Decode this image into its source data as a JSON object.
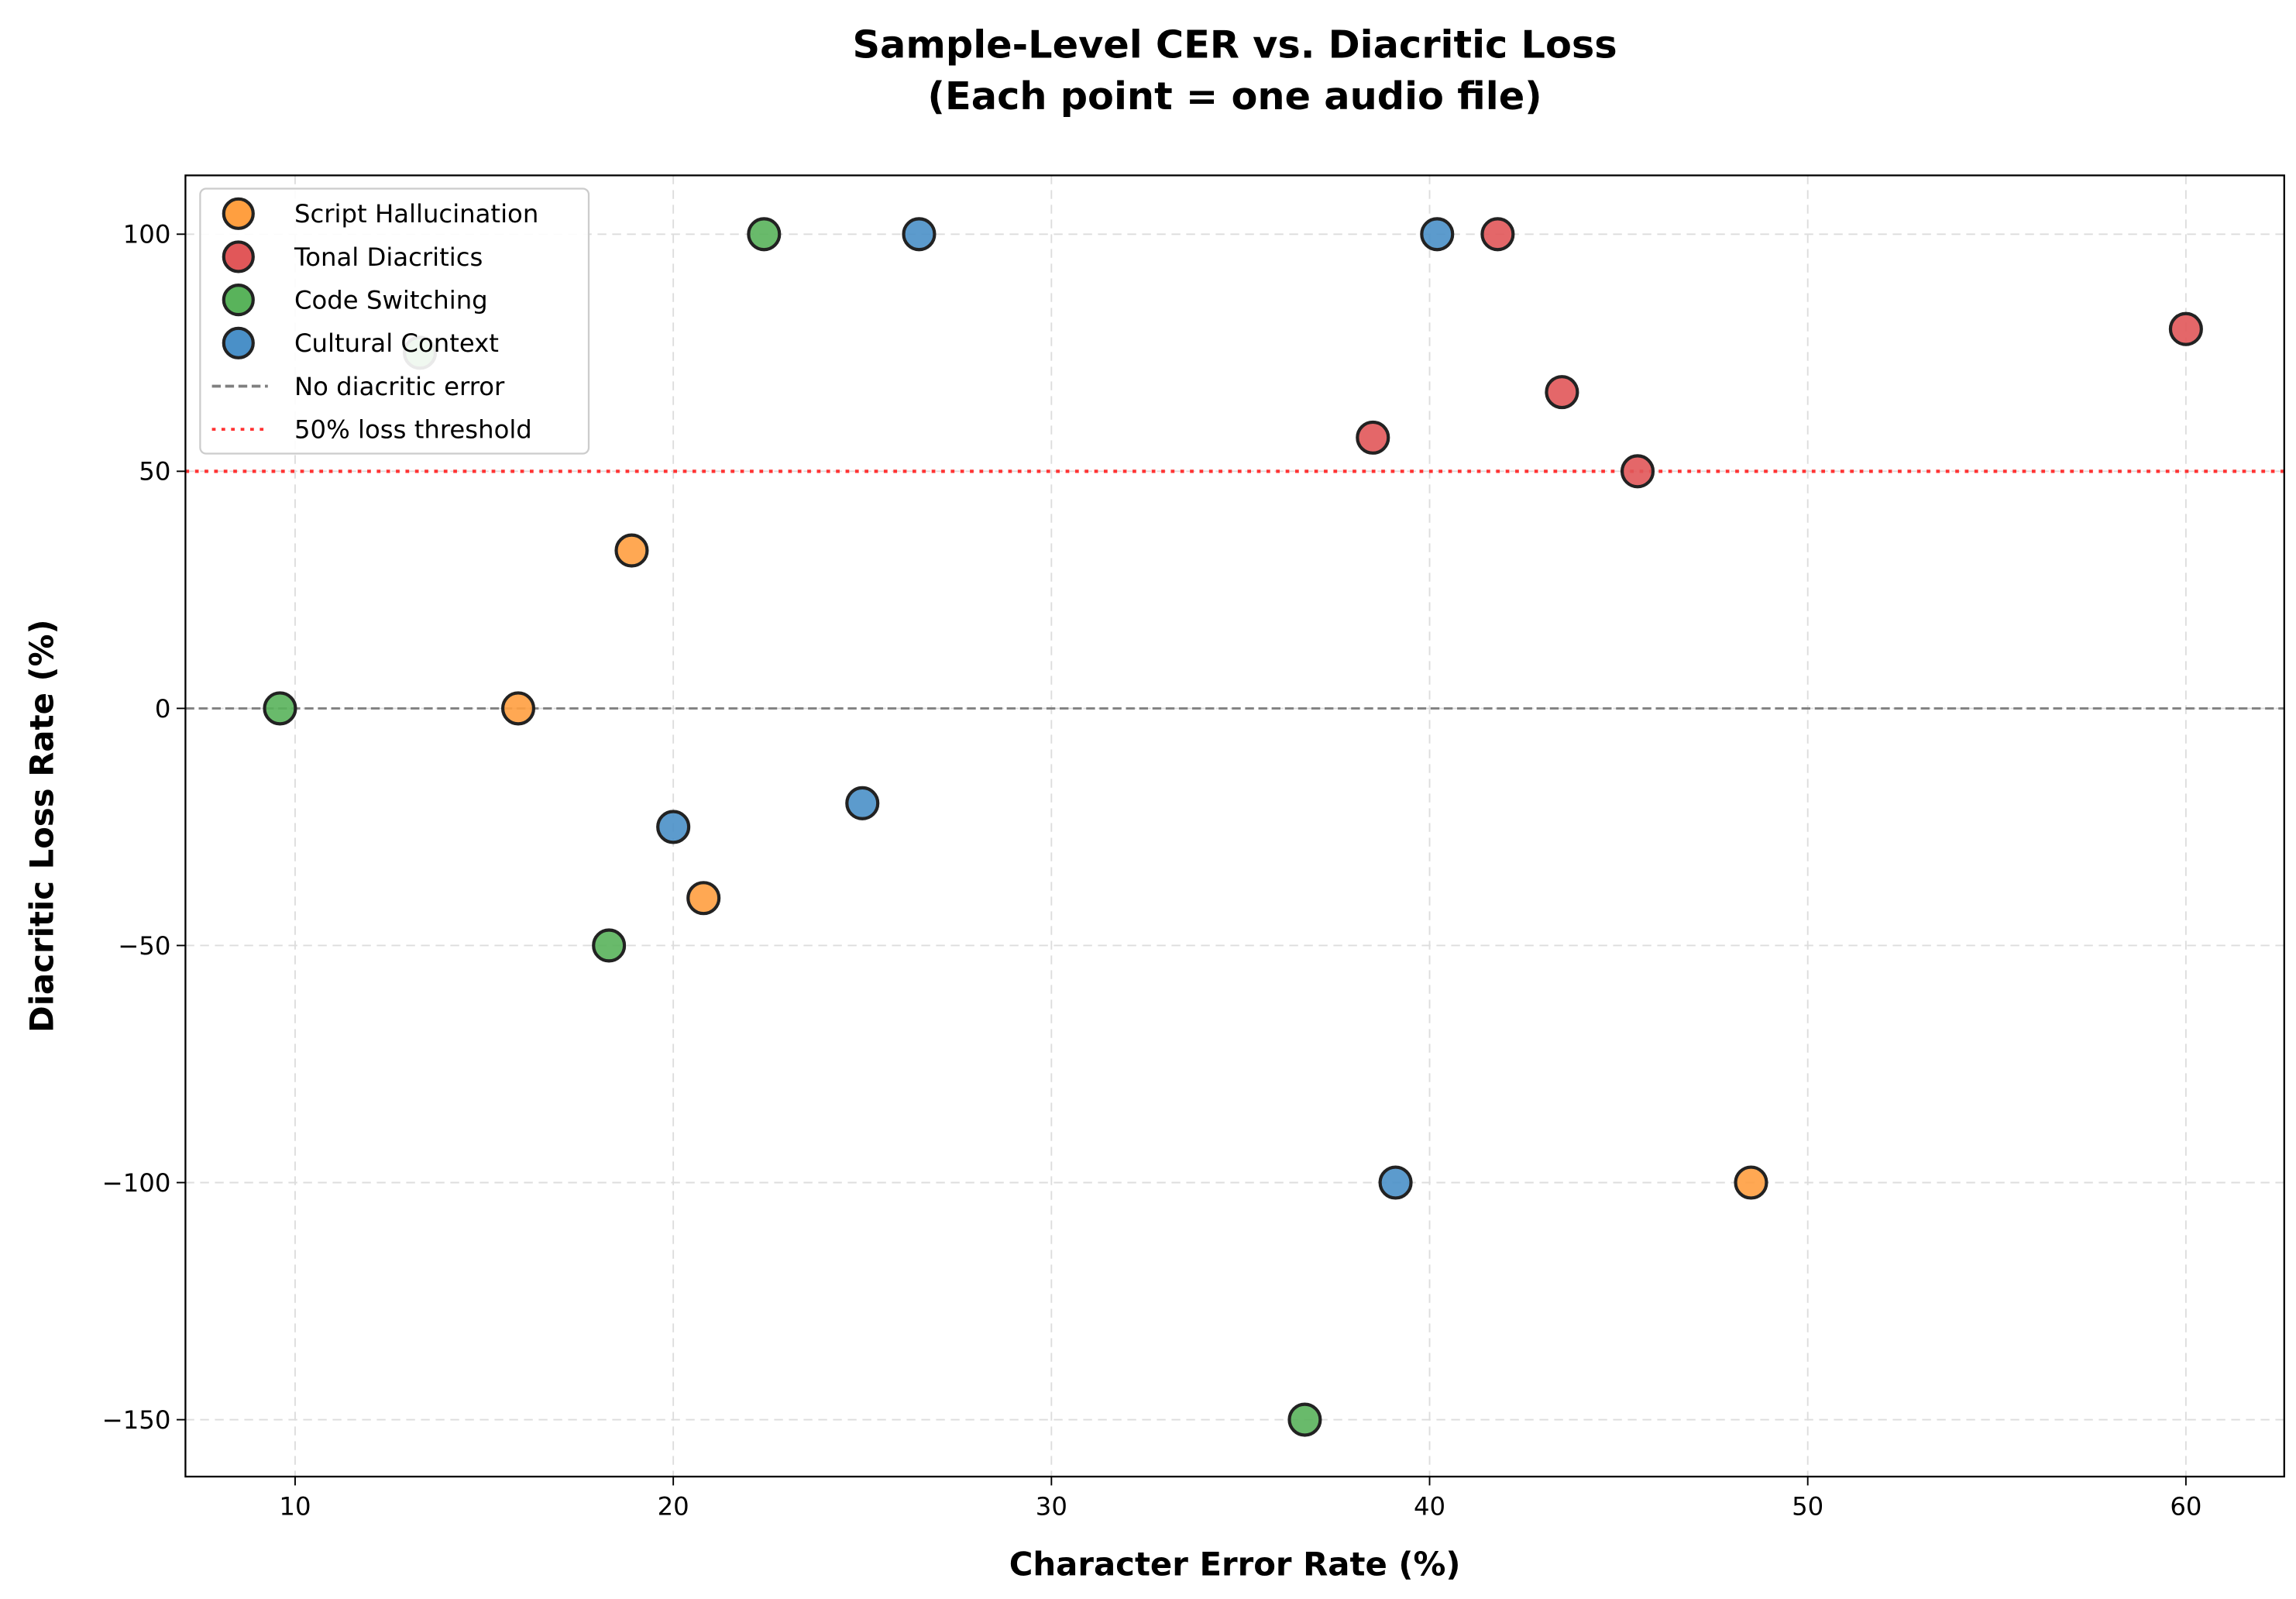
{
  "chart_data": {
    "type": "scatter",
    "title": [
      "Sample-Level CER vs. Diacritic Loss",
      "(Each point = one audio file)"
    ],
    "xlabel": "Character Error Rate (%)",
    "ylabel": "Diacritic Loss Rate (%)",
    "xlim": [
      7.1,
      62.6
    ],
    "ylim": [
      -162,
      112.4
    ],
    "xticks": [
      10,
      20,
      30,
      40,
      50,
      60
    ],
    "yticks": [
      -150,
      -100,
      -50,
      0,
      50,
      100
    ],
    "ytick_labels": [
      "−150",
      "−100",
      "−50",
      "0",
      "50",
      "100"
    ],
    "grid": true,
    "legend_placement": "upper-left",
    "series": [
      {
        "name": "Script Hallucination",
        "color": "#ff9f40",
        "points": [
          [
            15.9,
            0
          ],
          [
            18.9,
            33.3
          ],
          [
            20.8,
            -40
          ],
          [
            48.5,
            -100
          ]
        ]
      },
      {
        "name": "Tonal Diacritics",
        "color": "#e15759",
        "points": [
          [
            38.5,
            57.1
          ],
          [
            41.8,
            100
          ],
          [
            43.5,
            66.7
          ],
          [
            45.5,
            50
          ],
          [
            60.0,
            80
          ]
        ]
      },
      {
        "name": "Code Switching",
        "color": "#59b35b",
        "points": [
          [
            9.6,
            0
          ],
          [
            13.3,
            75
          ],
          [
            18.3,
            -50
          ],
          [
            22.4,
            100
          ],
          [
            36.7,
            -150
          ]
        ]
      },
      {
        "name": "Cultural Context",
        "color": "#4a90c8",
        "points": [
          [
            20.0,
            -25
          ],
          [
            25.0,
            -20
          ],
          [
            26.5,
            100
          ],
          [
            39.1,
            -100
          ],
          [
            40.2,
            100
          ]
        ]
      }
    ],
    "reference_lines": [
      {
        "name": "No diacritic error",
        "y": 0,
        "style": "dashed",
        "color": "#808080"
      },
      {
        "name": "50% loss threshold",
        "y": 50,
        "style": "dotted",
        "color": "#ff3333"
      }
    ]
  }
}
